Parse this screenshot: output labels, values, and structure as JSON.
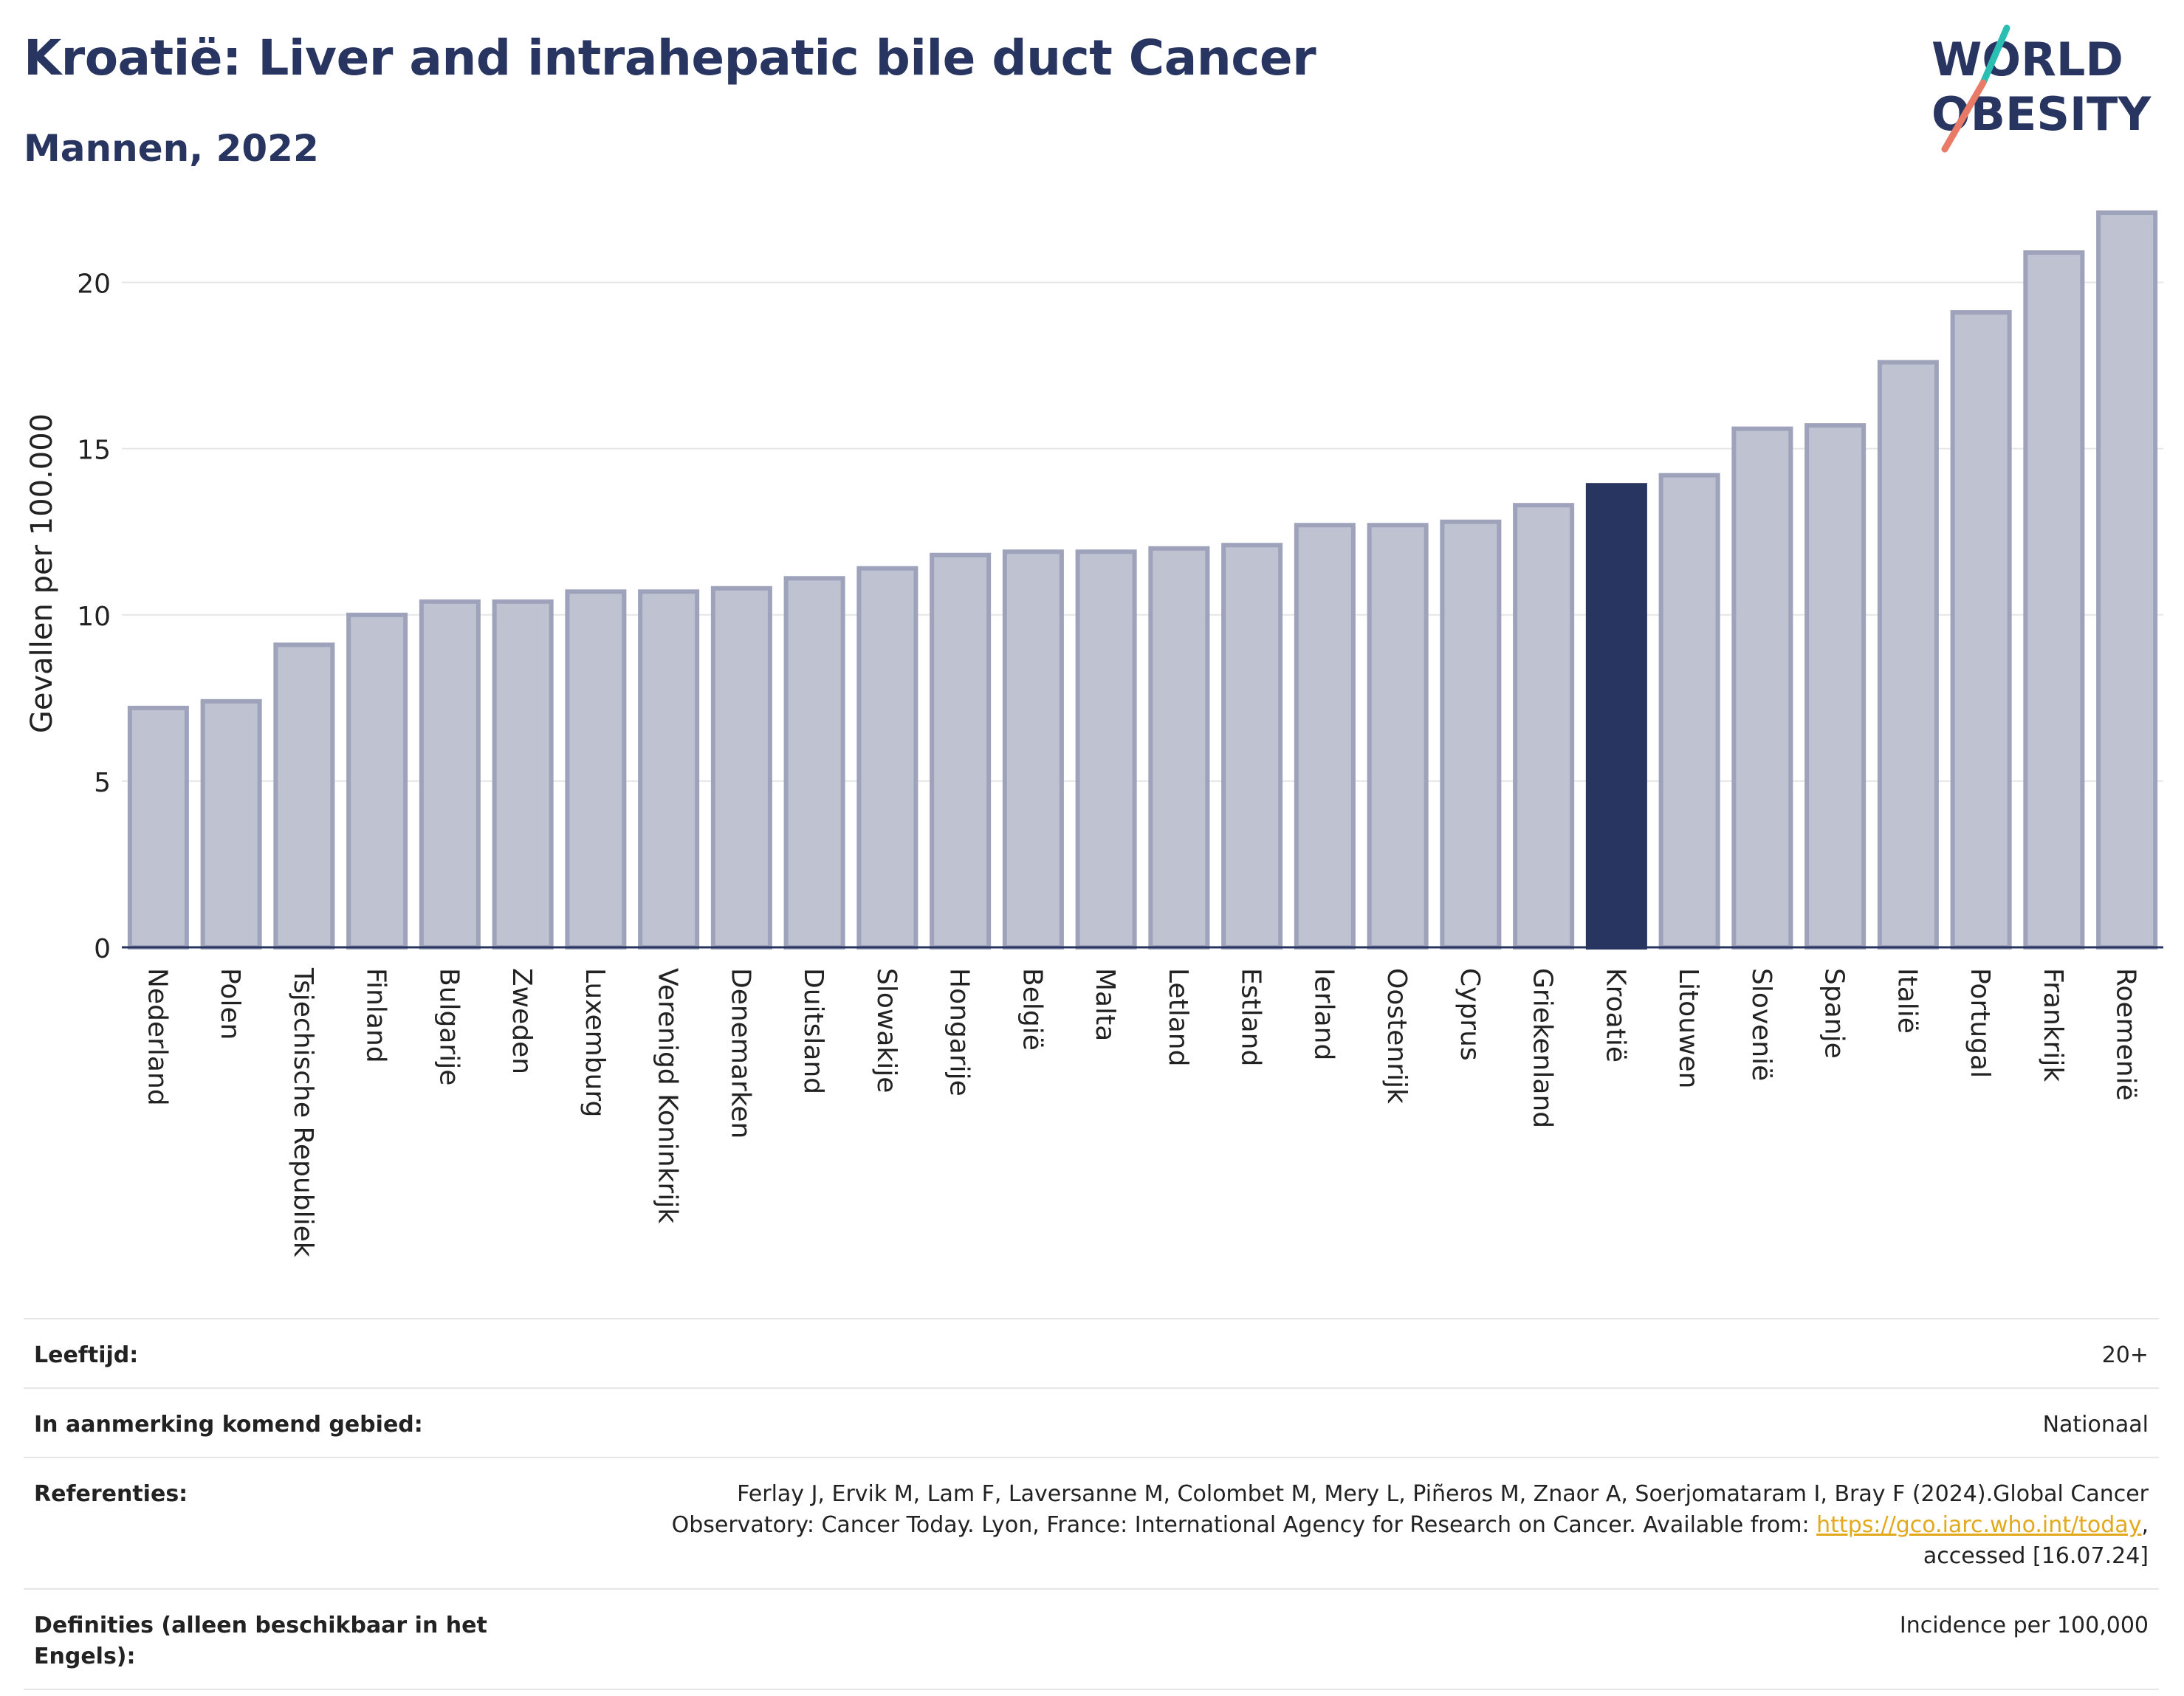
{
  "title": "Kroatië: Liver and intrahepatic bile duct Cancer",
  "subtitle": "Mannen, 2022",
  "logo": {
    "line1": "WORLD",
    "line2": "OBESITY"
  },
  "colors": {
    "accent": "#283561",
    "bar": "#bfc2d0",
    "bar_border": "#9ea3bb",
    "link": "#e3a91c",
    "logo_teal": "#2bbfb3",
    "logo_coral": "#e87a67"
  },
  "chart_data": {
    "type": "bar",
    "ylabel": "Gevallen per 100.000",
    "ylim": [
      0,
      22.5
    ],
    "yticks": [
      0,
      5,
      10,
      15,
      20
    ],
    "highlight": "Kroatië",
    "grid": true,
    "categories": [
      "Nederland",
      "Polen",
      "Tsjechische Republiek",
      "Finland",
      "Bulgarije",
      "Zweden",
      "Luxemburg",
      "Verenigd Koninkrijk",
      "Denemarken",
      "Duitsland",
      "Slowakije",
      "Hongarije",
      "België",
      "Malta",
      "Letland",
      "Estland",
      "Ierland",
      "Oostenrijk",
      "Cyprus",
      "Griekenland",
      "Kroatië",
      "Litouwen",
      "Slovenië",
      "Spanje",
      "Italië",
      "Portugal",
      "Frankrijk",
      "Roemenië"
    ],
    "values": [
      7.2,
      7.4,
      9.1,
      10.0,
      10.4,
      10.4,
      10.7,
      10.7,
      10.8,
      11.1,
      11.4,
      11.8,
      11.9,
      11.9,
      12.0,
      12.1,
      12.7,
      12.7,
      12.8,
      13.3,
      13.9,
      14.2,
      15.6,
      15.7,
      17.6,
      19.1,
      20.9,
      22.1
    ]
  },
  "meta": [
    {
      "label": "Leeftijd:",
      "value": "20+"
    },
    {
      "label": "In aanmerking komend gebied:",
      "value": "Nationaal"
    },
    {
      "label": "Referenties:",
      "value_line1": "Ferlay J, Ervik M, Lam F, Laversanne M, Colombet M, Mery L, Piñeros M, Znaor A, Soerjomataram I, Bray F (2024).Global Cancer",
      "value_line2_prefix": "Observatory: Cancer Today. Lyon, France: International Agency for Research on Cancer. Available from: ",
      "link": "https://gco.iarc.who.int/today",
      "value_line2_suffix": ",",
      "value_line3": "accessed [16.07.24]"
    },
    {
      "label": "Definities (alleen beschikbaar in het Engels):",
      "value": "Incidence per 100,000"
    }
  ]
}
